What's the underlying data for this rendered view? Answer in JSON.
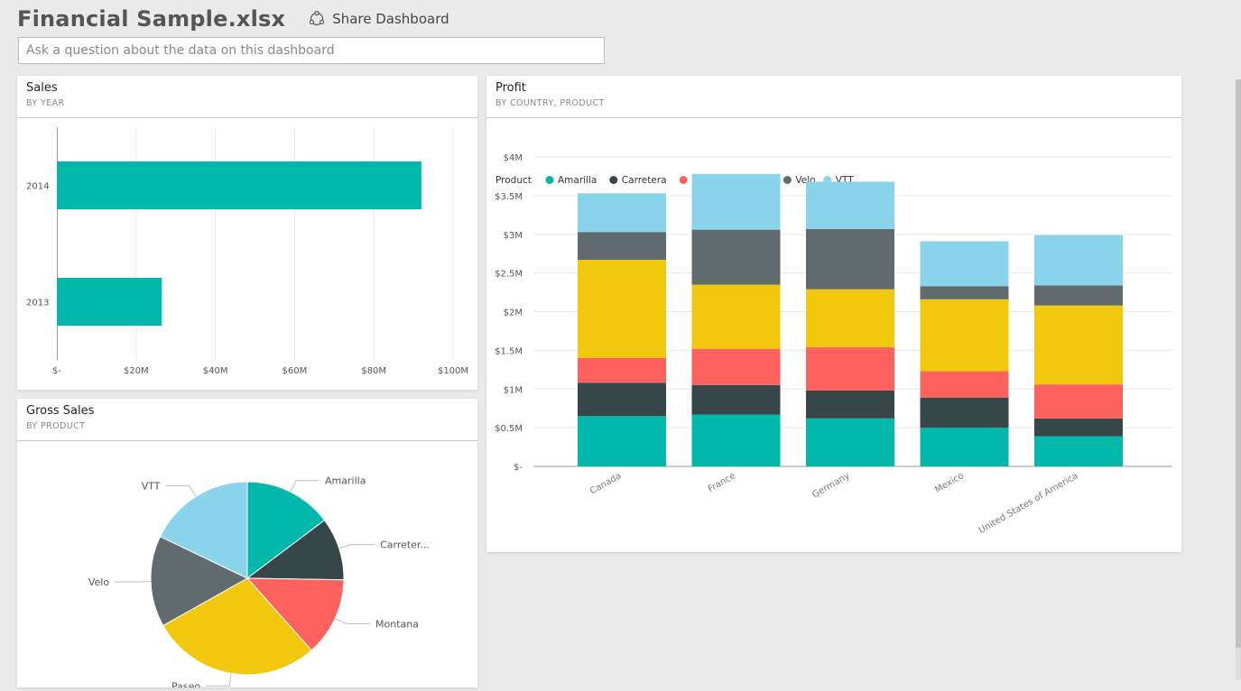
{
  "header": {
    "title": "Financial Sample.xlsx",
    "share_label": "Share Dashboard"
  },
  "qa": {
    "placeholder": "Ask a question about the data on this dashboard"
  },
  "colors": {
    "Amarilla": "#01B8AA",
    "Carretera": "#374649",
    "Montana": "#FD625E",
    "Paseo": "#F2C80F",
    "Velo": "#5F6B6D",
    "VTT": "#8AD4EB"
  },
  "tiles": {
    "sales": {
      "title": "Sales",
      "subtitle": "BY YEAR"
    },
    "gross": {
      "title": "Gross Sales",
      "subtitle": "BY PRODUCT"
    },
    "profit": {
      "title": "Profit",
      "subtitle": "BY COUNTRY, PRODUCT"
    }
  },
  "chart_data": [
    {
      "id": "sales",
      "type": "bar",
      "orientation": "horizontal",
      "categories": [
        "2014",
        "2013"
      ],
      "values": [
        92,
        26.5
      ],
      "unit": "$M",
      "xlim": [
        0,
        100
      ],
      "xticks": [
        0,
        20,
        40,
        60,
        80,
        100
      ],
      "xtick_labels": [
        "$-",
        "$20M",
        "$40M",
        "$60M",
        "$80M",
        "$100M"
      ],
      "color": "#01B8AA",
      "grid": true
    },
    {
      "id": "gross",
      "type": "pie",
      "labels": [
        "Amarilla",
        "Carreter...",
        "Montana",
        "Paseo",
        "Velo",
        "VTT"
      ],
      "series_keys": [
        "Amarilla",
        "Carretera",
        "Montana",
        "Paseo",
        "Velo",
        "VTT"
      ],
      "values": [
        14.0,
        10.0,
        12.5,
        27.0,
        14.5,
        17.0
      ]
    },
    {
      "id": "profit",
      "type": "bar",
      "stacked": true,
      "legend_title": "Product",
      "legend_position": "top-left",
      "categories": [
        "Canada",
        "France",
        "Germany",
        "Mexico",
        "United States of America"
      ],
      "unit": "$M",
      "ylim": [
        0,
        4
      ],
      "yticks": [
        0,
        0.5,
        1,
        1.5,
        2,
        2.5,
        3,
        3.5,
        4
      ],
      "ytick_labels": [
        "$-",
        "$0.5M",
        "$1M",
        "$1.5M",
        "$2M",
        "$2.5M",
        "$3M",
        "$3.5M",
        "$4M"
      ],
      "grid": true,
      "series": [
        {
          "name": "Amarilla",
          "values": [
            0.65,
            0.67,
            0.62,
            0.5,
            0.39
          ]
        },
        {
          "name": "Carretera",
          "values": [
            0.43,
            0.38,
            0.36,
            0.39,
            0.23
          ]
        },
        {
          "name": "Montana",
          "values": [
            0.32,
            0.47,
            0.56,
            0.34,
            0.44
          ]
        },
        {
          "name": "Paseo",
          "values": [
            1.27,
            0.83,
            0.75,
            0.93,
            1.02
          ]
        },
        {
          "name": "Velo",
          "values": [
            0.36,
            0.71,
            0.78,
            0.17,
            0.26
          ]
        },
        {
          "name": "VTT",
          "values": [
            0.5,
            0.72,
            0.61,
            0.58,
            0.65
          ]
        }
      ]
    }
  ]
}
